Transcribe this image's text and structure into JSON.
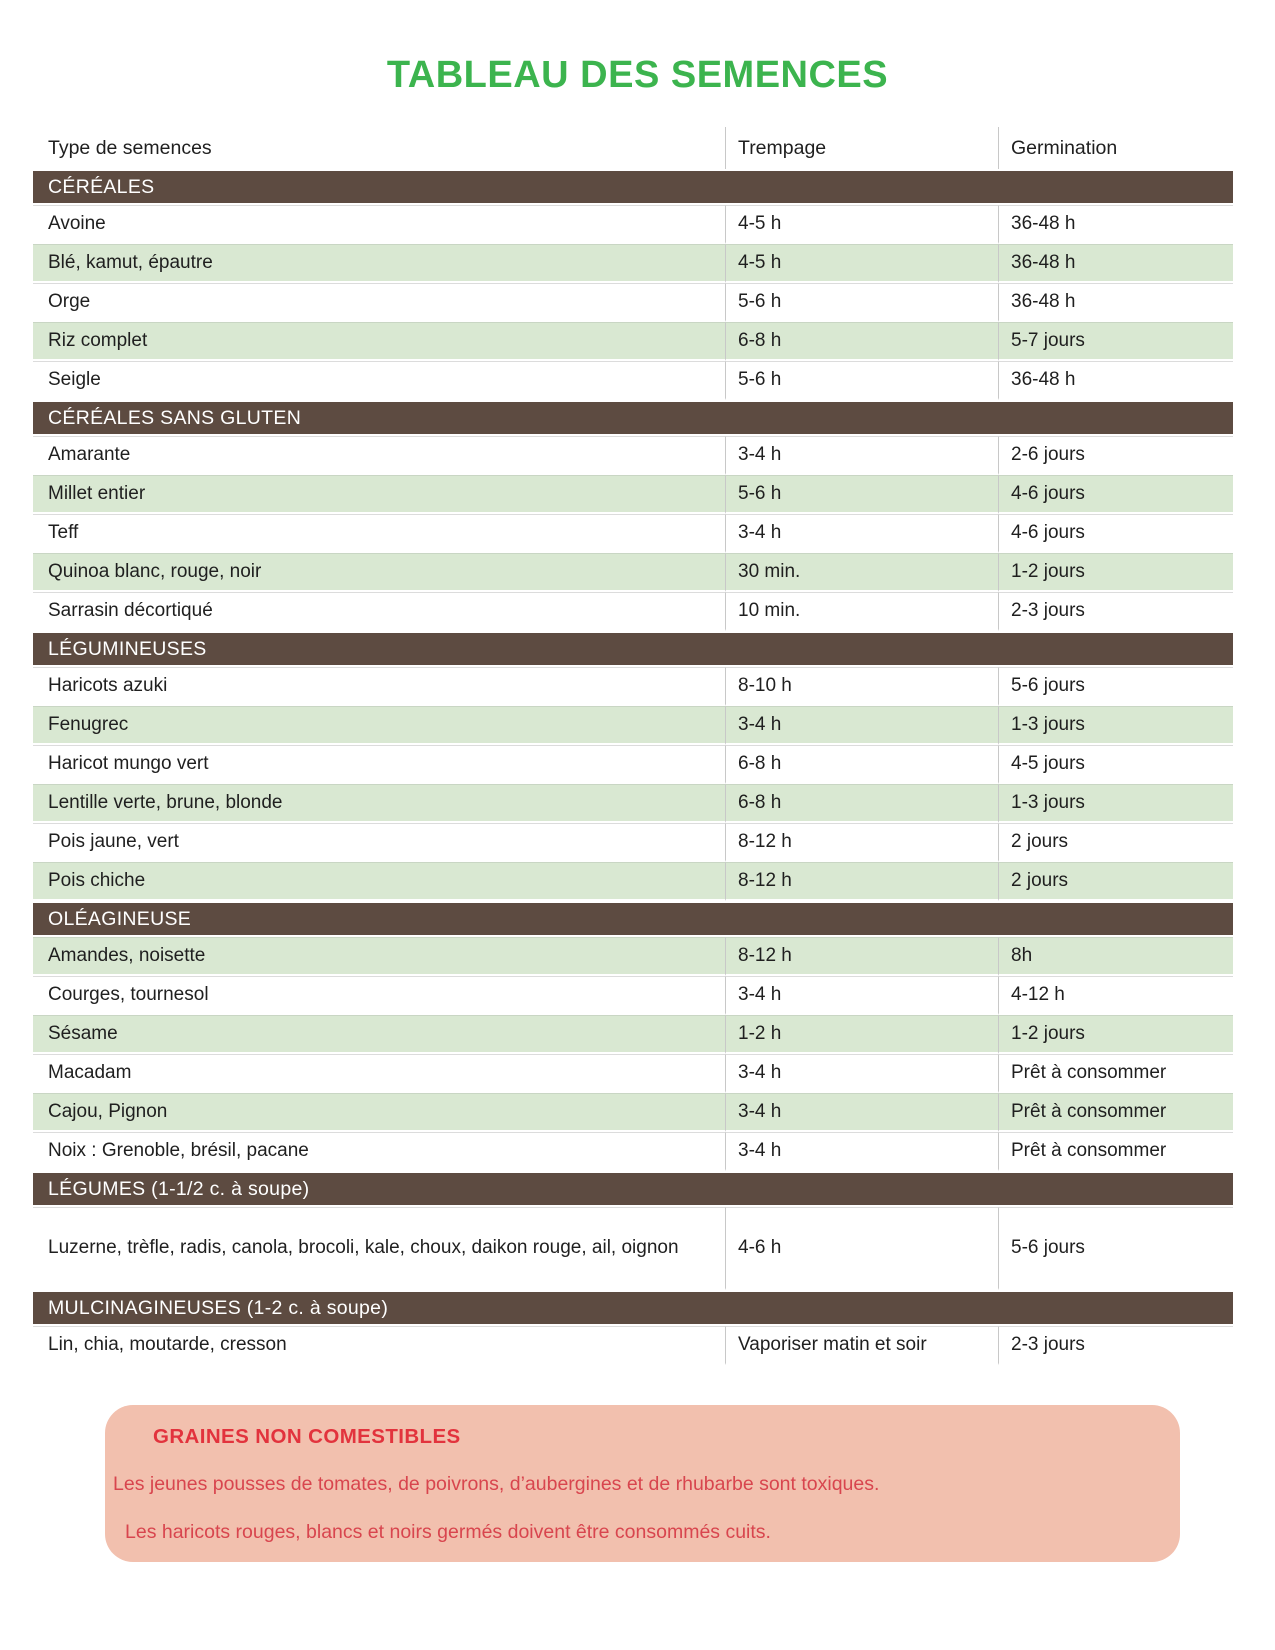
{
  "title": "TABLEAU DES SEMENCES",
  "colors": {
    "title-green": "#3cb44e",
    "bar-brown": "#5d4b41",
    "row-green": "#d9e8d2",
    "box-pink": "#f2c0ae",
    "red-heading": "#e2333d",
    "red-body": "#d8454e"
  },
  "table": {
    "columns": [
      "Type de semences",
      "Trempage",
      "Germination"
    ],
    "sections": [
      {
        "header": "CÉRÉALES",
        "rows": [
          {
            "type": "Avoine",
            "trempage": "4-5 h",
            "germination": "36-48 h",
            "shaded": false
          },
          {
            "type": "Blé, kamut, épautre",
            "trempage": "4-5 h",
            "germination": "36-48 h",
            "shaded": true
          },
          {
            "type": "Orge",
            "trempage": "5-6 h",
            "germination": "36-48 h",
            "shaded": false
          },
          {
            "type": "Riz complet",
            "trempage": "6-8 h",
            "germination": "5-7 jours",
            "shaded": true
          },
          {
            "type": "Seigle",
            "trempage": "5-6 h",
            "germination": "36-48 h",
            "shaded": false
          }
        ]
      },
      {
        "header": "CÉRÉALES SANS GLUTEN",
        "rows": [
          {
            "type": "Amarante",
            "trempage": "3-4 h",
            "germination": "2-6 jours",
            "shaded": false
          },
          {
            "type": "Millet entier",
            "trempage": "5-6 h",
            "germination": "4-6 jours",
            "shaded": true
          },
          {
            "type": "Teff",
            "trempage": "3-4 h",
            "germination": "4-6 jours",
            "shaded": false
          },
          {
            "type": "Quinoa blanc, rouge, noir",
            "trempage": "30 min.",
            "germination": "1-2 jours",
            "shaded": true
          },
          {
            "type": "Sarrasin décortiqué",
            "trempage": "10 min.",
            "germination": "2-3 jours",
            "shaded": false
          }
        ]
      },
      {
        "header": "LÉGUMINEUSES",
        "rows": [
          {
            "type": "Haricots azuki",
            "trempage": "8-10 h",
            "germination": "5-6 jours",
            "shaded": false
          },
          {
            "type": "Fenugrec",
            "trempage": "3-4 h",
            "germination": "1-3 jours",
            "shaded": true
          },
          {
            "type": "Haricot mungo vert",
            "trempage": "6-8 h",
            "germination": "4-5 jours",
            "shaded": false
          },
          {
            "type": "Lentille verte, brune, blonde",
            "trempage": "6-8 h",
            "germination": "1-3 jours",
            "shaded": true
          },
          {
            "type": "Pois jaune, vert",
            "trempage": "8-12 h",
            "germination": "2 jours",
            "shaded": false
          },
          {
            "type": "Pois chiche",
            "trempage": "8-12 h",
            "germination": "2 jours",
            "shaded": true
          }
        ]
      },
      {
        "header": "OLÉAGINEUSE",
        "rows": [
          {
            "type": "Amandes, noisette",
            "trempage": "8-12 h",
            "germination": "8h",
            "shaded": true
          },
          {
            "type": "Courges, tournesol",
            "trempage": "3-4 h",
            "germination": "4-12 h",
            "shaded": false
          },
          {
            "type": "Sésame",
            "trempage": "1-2 h",
            "germination": "1-2 jours",
            "shaded": true
          },
          {
            "type": "Macadam",
            "trempage": "3-4 h",
            "germination": "Prêt à consommer",
            "shaded": false
          },
          {
            "type": "Cajou, Pignon",
            "trempage": "3-4 h",
            "germination": "Prêt à consommer",
            "shaded": true
          },
          {
            "type": "Noix : Grenoble, brésil, pacane",
            "trempage": "3-4 h",
            "germination": "Prêt à consommer",
            "shaded": false
          }
        ]
      },
      {
        "header": "LÉGUMES (1-1/2 c. à soupe)",
        "rows": [
          {
            "type": "Luzerne, trèfle, radis, canola, brocoli, kale, choux, daikon rouge, ail, oignon",
            "trempage": "4-6 h",
            "germination": "5-6 jours",
            "shaded": false,
            "tall": true
          }
        ]
      },
      {
        "header": "MULCINAGINEUSES (1-2 c. à soupe)",
        "rows": [
          {
            "type": "Lin, chia, moutarde, cresson",
            "trempage": "Vaporiser matin et soir",
            "germination": "2-3 jours",
            "shaded": false
          }
        ]
      }
    ]
  },
  "warning": {
    "heading": "GRAINES NON COMESTIBLES",
    "lines": [
      "Les jeunes pousses de tomates, de poivrons, d’aubergines et de rhubarbe sont toxiques.",
      "Les haricots rouges, blancs et noirs germés doivent être consommés cuits."
    ]
  }
}
